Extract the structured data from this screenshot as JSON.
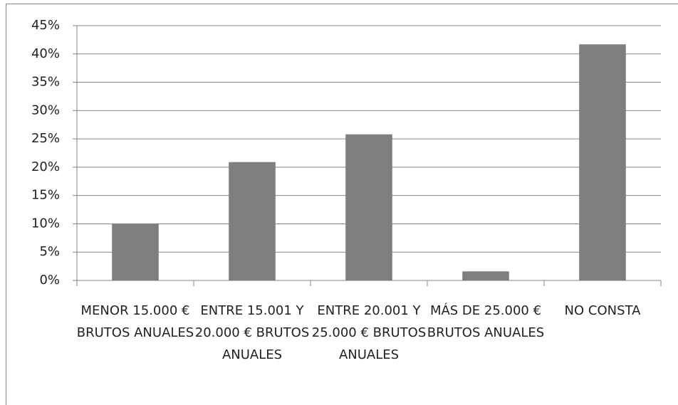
{
  "chart_data": {
    "type": "bar",
    "categories": [
      "MENOR 15.000 € BRUTOS ANUALES",
      "ENTRE 15.001 Y 20.000 € BRUTOS ANUALES",
      "ENTRE 20.001 Y 25.000 € BRUTOS ANUALES",
      "MÁS DE 25.000 € BRUTOS ANUALES",
      "NO CONSTA"
    ],
    "values": [
      10,
      20.9,
      25.8,
      1.6,
      41.7
    ],
    "color": "#7f7f7f",
    "ylim": [
      0,
      45
    ],
    "yticks": [
      {
        "value": 0,
        "label": "0%"
      },
      {
        "value": 5,
        "label": "5%"
      },
      {
        "value": 10,
        "label": "10%"
      },
      {
        "value": 15,
        "label": "15%"
      },
      {
        "value": 20,
        "label": "20%"
      },
      {
        "value": 25,
        "label": "25%"
      },
      {
        "value": 30,
        "label": "30%"
      },
      {
        "value": 35,
        "label": "35%"
      },
      {
        "value": 40,
        "label": "40%"
      },
      {
        "value": 45,
        "label": "45%"
      }
    ],
    "grid": true
  }
}
